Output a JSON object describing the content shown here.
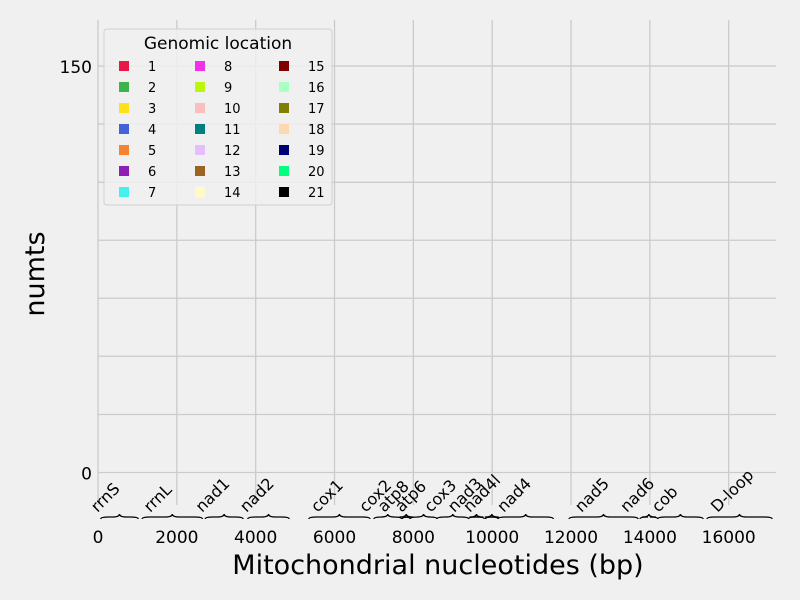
{
  "chart_data": {
    "type": "bar",
    "xlabel": "Mitochondrial nucleotides (bp)",
    "ylabel": "numts",
    "xlim": [
      0,
      17200
    ],
    "ylim": [
      -12,
      167
    ],
    "x_ticks": [
      0,
      2000,
      4000,
      6000,
      8000,
      10000,
      12000,
      14000,
      16000
    ],
    "y_ticks": [
      0,
      150
    ],
    "y_gridlines": [
      0,
      21.4,
      42.9,
      64.3,
      85.7,
      107.1,
      128.6,
      150
    ],
    "grid": true,
    "legend": {
      "title": "Genomic location",
      "placement": "top-left",
      "columns": 3,
      "entries": [
        {
          "label": "1",
          "color": "#e6194b"
        },
        {
          "label": "2",
          "color": "#3cb44b"
        },
        {
          "label": "3",
          "color": "#ffe119"
        },
        {
          "label": "4",
          "color": "#4363d8"
        },
        {
          "label": "5",
          "color": "#f58231"
        },
        {
          "label": "6",
          "color": "#911eb4"
        },
        {
          "label": "7",
          "color": "#46f0f0"
        },
        {
          "label": "8",
          "color": "#f032e6"
        },
        {
          "label": "9",
          "color": "#bcf60c"
        },
        {
          "label": "10",
          "color": "#fabebe"
        },
        {
          "label": "11",
          "color": "#008080"
        },
        {
          "label": "12",
          "color": "#e6beff"
        },
        {
          "label": "13",
          "color": "#9a6324"
        },
        {
          "label": "14",
          "color": "#fffac8"
        },
        {
          "label": "15",
          "color": "#800000"
        },
        {
          "label": "16",
          "color": "#aaffc3"
        },
        {
          "label": "17",
          "color": "#808000"
        },
        {
          "label": "18",
          "color": "#ffd8b1"
        },
        {
          "label": "19",
          "color": "#000075"
        },
        {
          "label": "20",
          "color": "#00ff7f"
        },
        {
          "label": "21",
          "color": "#000000"
        }
      ]
    },
    "series": [],
    "genes": [
      {
        "name": "rrnS",
        "start": 70,
        "end": 1020
      },
      {
        "name": "rrnL",
        "start": 1120,
        "end": 2650
      },
      {
        "name": "nad1",
        "start": 2720,
        "end": 3680
      },
      {
        "name": "nad2",
        "start": 3800,
        "end": 4850
      },
      {
        "name": "cox1",
        "start": 5350,
        "end": 6900
      },
      {
        "name": "cox2",
        "start": 7000,
        "end": 7700
      },
      {
        "name": "atp8",
        "start": 7720,
        "end": 7920
      },
      {
        "name": "atp6",
        "start": 7920,
        "end": 8600
      },
      {
        "name": "cox3",
        "start": 8600,
        "end": 9400
      },
      {
        "name": "nad3",
        "start": 9400,
        "end": 9800
      },
      {
        "name": "nad4l",
        "start": 9830,
        "end": 10150
      },
      {
        "name": "nad4",
        "start": 10150,
        "end": 11550
      },
      {
        "name": "nad5",
        "start": 11950,
        "end": 13700
      },
      {
        "name": "nad6",
        "start": 13750,
        "end": 14200
      },
      {
        "name": "cob",
        "start": 14200,
        "end": 15350
      },
      {
        "name": "D-loop",
        "start": 15450,
        "end": 17100
      }
    ]
  }
}
